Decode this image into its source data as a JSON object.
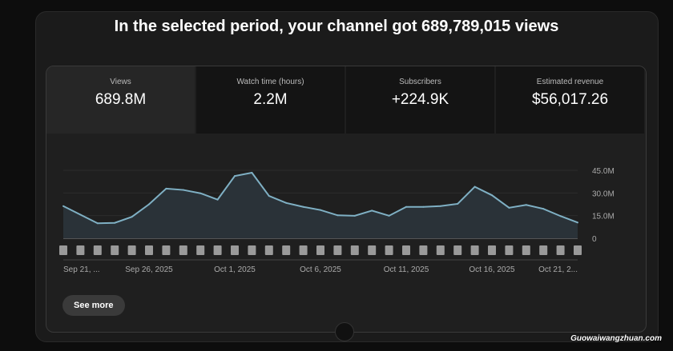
{
  "headline": "In the selected period, your channel got 689,789,015 views",
  "metrics": [
    {
      "label": "Views",
      "value": "689.8M"
    },
    {
      "label": "Watch time (hours)",
      "value": "2.2M"
    },
    {
      "label": "Subscribers",
      "value": "+224.9K"
    },
    {
      "label": "Estimated revenue",
      "value": "$56,017.26"
    }
  ],
  "see_more": "See more",
  "watermark": "Guowaiwangzhuan.com",
  "chart_data": {
    "type": "area",
    "ylim": [
      0,
      45
    ],
    "y_ticks": [
      "0",
      "15.0M",
      "30.0M",
      "45.0M"
    ],
    "x_tick_labels": [
      "Sep 21, ...",
      "Sep 26, 2025",
      "Oct 1, 2025",
      "Oct 6, 2025",
      "Oct 11, 2025",
      "Oct 16, 2025",
      "Oct 21, 2..."
    ],
    "values_millions": [
      21.3,
      15.6,
      9.9,
      10.2,
      14.2,
      22.5,
      32.9,
      32.0,
      29.8,
      25.6,
      41.2,
      43.4,
      28.0,
      23.4,
      20.8,
      18.7,
      15.2,
      14.9,
      18.3,
      14.9,
      20.8,
      20.8,
      21.3,
      22.8,
      34.1,
      28.5,
      20.2,
      22.1,
      19.5,
      14.7,
      10.4
    ],
    "line_color": "#7fb0c4",
    "fill_color": "#2a3238",
    "grid": true
  }
}
